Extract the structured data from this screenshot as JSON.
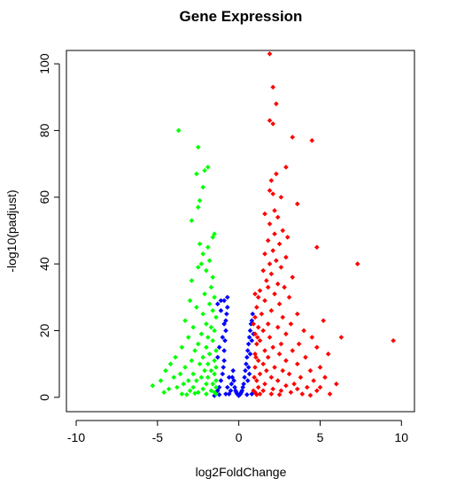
{
  "chart_data": {
    "type": "scatter",
    "title": "Gene Expression",
    "xlabel": "log2FoldChange",
    "ylabel": "-log10(padjust)",
    "xlim": [
      -10.6,
      10.8
    ],
    "ylim": [
      -4.3,
      104
    ],
    "xticks": [
      -10,
      -5,
      0,
      5,
      10
    ],
    "yticks": [
      0,
      20,
      40,
      60,
      80,
      100
    ],
    "grid": false,
    "legend": "none",
    "series": [
      {
        "color": "#0000ff",
        "points": [
          [
            -1.4,
            1
          ],
          [
            -1.3,
            2
          ],
          [
            -1.2,
            3
          ],
          [
            -1.1,
            5
          ],
          [
            -1.0,
            7
          ],
          [
            -0.95,
            9
          ],
          [
            -0.9,
            11
          ],
          [
            -0.9,
            14
          ],
          [
            -0.85,
            17
          ],
          [
            -0.8,
            20
          ],
          [
            -0.8,
            23
          ],
          [
            -0.75,
            25
          ],
          [
            -0.7,
            27
          ],
          [
            -0.7,
            30
          ],
          [
            -0.6,
            1
          ],
          [
            -0.5,
            2
          ],
          [
            -0.45,
            4
          ],
          [
            -0.4,
            6
          ],
          [
            -0.35,
            8
          ],
          [
            -0.3,
            5
          ],
          [
            -0.25,
            3
          ],
          [
            -0.2,
            2
          ],
          [
            -0.15,
            1.5
          ],
          [
            -0.1,
            1
          ],
          [
            0,
            0.5
          ],
          [
            0.1,
            1
          ],
          [
            0.15,
            1.5
          ],
          [
            0.2,
            2
          ],
          [
            0.25,
            3
          ],
          [
            0.3,
            4
          ],
          [
            0.35,
            6
          ],
          [
            0.4,
            8
          ],
          [
            0.45,
            10
          ],
          [
            0.5,
            12
          ],
          [
            0.55,
            14
          ],
          [
            0.6,
            16
          ],
          [
            0.65,
            18
          ],
          [
            0.7,
            20
          ],
          [
            0.75,
            22
          ],
          [
            0.8,
            23
          ],
          [
            0.85,
            25
          ],
          [
            -1.3,
            12
          ],
          [
            -1.2,
            15
          ],
          [
            -1.0,
            18
          ],
          [
            -0.9,
            22
          ],
          [
            -1.1,
            26
          ],
          [
            0.6,
            9
          ],
          [
            0.7,
            13
          ],
          [
            0.8,
            17
          ],
          [
            0.9,
            19
          ],
          [
            -1.3,
            28
          ],
          [
            -1.1,
            29
          ],
          [
            -0.9,
            29
          ],
          [
            -1.5,
            0.5
          ],
          [
            -1.2,
            0.8
          ],
          [
            -0.8,
            1
          ],
          [
            0.5,
            0.8
          ],
          [
            0.8,
            1
          ],
          [
            1.0,
            1.5
          ],
          [
            -0.7,
            3
          ],
          [
            -0.6,
            6
          ],
          [
            0.55,
            5
          ],
          [
            0.65,
            7
          ]
        ]
      },
      {
        "color": "#00ff00",
        "points": [
          [
            -3.7,
            80
          ],
          [
            -2.5,
            75
          ],
          [
            -1.9,
            69
          ],
          [
            -2.1,
            68
          ],
          [
            -2.6,
            67
          ],
          [
            -2.2,
            63
          ],
          [
            -2.4,
            59
          ],
          [
            -2.5,
            57
          ],
          [
            -2.9,
            53
          ],
          [
            -1.5,
            49
          ],
          [
            -1.6,
            48
          ],
          [
            -2.4,
            46
          ],
          [
            -1.9,
            45
          ],
          [
            -2.2,
            43
          ],
          [
            -1.8,
            41
          ],
          [
            -2.3,
            40
          ],
          [
            -2.5,
            39
          ],
          [
            -2.0,
            38
          ],
          [
            -1.6,
            36
          ],
          [
            -2.9,
            35
          ],
          [
            -1.7,
            33
          ],
          [
            -2.1,
            31
          ],
          [
            -1.5,
            30
          ],
          [
            -3.0,
            29
          ],
          [
            -1.8,
            28
          ],
          [
            -2.6,
            27
          ],
          [
            -1.6,
            26
          ],
          [
            -2.2,
            25
          ],
          [
            -1.4,
            24
          ],
          [
            -3.3,
            23
          ],
          [
            -2.0,
            22
          ],
          [
            -1.7,
            21
          ],
          [
            -2.8,
            21
          ],
          [
            -1.5,
            20
          ],
          [
            -2.3,
            19
          ],
          [
            -1.9,
            18
          ],
          [
            -3.1,
            18
          ],
          [
            -1.6,
            17
          ],
          [
            -2.5,
            16
          ],
          [
            -2.0,
            15
          ],
          [
            -3.5,
            15
          ],
          [
            -1.4,
            14
          ],
          [
            -2.7,
            14
          ],
          [
            -1.8,
            13
          ],
          [
            -2.2,
            12
          ],
          [
            -3.9,
            12
          ],
          [
            -1.5,
            11
          ],
          [
            -2.9,
            11
          ],
          [
            -1.9,
            10
          ],
          [
            -2.4,
            10
          ],
          [
            -4.2,
            10
          ],
          [
            -1.4,
            9
          ],
          [
            -3.3,
            9
          ],
          [
            -2.1,
            8
          ],
          [
            -1.7,
            8
          ],
          [
            -4.5,
            8
          ],
          [
            -2.8,
            7
          ],
          [
            -1.5,
            7
          ],
          [
            -3.6,
            7
          ],
          [
            -2.3,
            6
          ],
          [
            -1.9,
            6
          ],
          [
            -4.0,
            6
          ],
          [
            -1.4,
            5
          ],
          [
            -3.1,
            5
          ],
          [
            -2.6,
            5
          ],
          [
            -4.8,
            5
          ],
          [
            -2.0,
            4
          ],
          [
            -1.6,
            4
          ],
          [
            -3.4,
            4
          ],
          [
            -5.3,
            3.5
          ],
          [
            -2.8,
            3
          ],
          [
            -1.4,
            3
          ],
          [
            -3.8,
            3
          ],
          [
            -2.2,
            2.5
          ],
          [
            -4.3,
            2.5
          ],
          [
            -1.7,
            2
          ],
          [
            -3.0,
            2
          ],
          [
            -2.5,
            1.5
          ],
          [
            -1.5,
            1.5
          ],
          [
            -4.6,
            1.5
          ],
          [
            -3.5,
            1
          ],
          [
            -2.0,
            1
          ],
          [
            -1.4,
            1
          ],
          [
            -2.7,
            1.2
          ],
          [
            -3.2,
            0.8
          ]
        ]
      },
      {
        "color": "#ff0000",
        "points": [
          [
            1.9,
            103
          ],
          [
            2.1,
            93
          ],
          [
            2.3,
            88
          ],
          [
            1.9,
            83
          ],
          [
            2.1,
            82
          ],
          [
            3.3,
            78
          ],
          [
            4.5,
            77
          ],
          [
            2.9,
            69
          ],
          [
            2.3,
            67
          ],
          [
            2.0,
            65
          ],
          [
            1.9,
            62
          ],
          [
            2.1,
            61
          ],
          [
            2.6,
            60
          ],
          [
            3.6,
            58
          ],
          [
            2.2,
            56
          ],
          [
            1.6,
            55
          ],
          [
            2.4,
            54
          ],
          [
            1.9,
            52
          ],
          [
            2.7,
            50
          ],
          [
            2.2,
            49
          ],
          [
            3.0,
            48
          ],
          [
            1.8,
            47
          ],
          [
            2.5,
            46
          ],
          [
            4.8,
            45
          ],
          [
            2.1,
            44
          ],
          [
            1.6,
            43
          ],
          [
            2.9,
            42
          ],
          [
            2.3,
            41
          ],
          [
            1.9,
            40
          ],
          [
            7.3,
            40
          ],
          [
            2.6,
            39
          ],
          [
            1.5,
            38
          ],
          [
            2.0,
            37
          ],
          [
            3.3,
            36
          ],
          [
            1.7,
            35
          ],
          [
            2.4,
            34
          ],
          [
            1.8,
            33
          ],
          [
            2.8,
            33
          ],
          [
            1.3,
            32
          ],
          [
            2.2,
            31
          ],
          [
            1.0,
            31
          ],
          [
            1.2,
            30
          ],
          [
            3.1,
            30
          ],
          [
            1.6,
            29
          ],
          [
            2.5,
            28
          ],
          [
            1.1,
            27
          ],
          [
            2.0,
            26
          ],
          [
            3.6,
            25
          ],
          [
            1.4,
            25
          ],
          [
            2.7,
            24
          ],
          [
            1.0,
            24
          ],
          [
            5.2,
            23
          ],
          [
            1.8,
            22
          ],
          [
            3.2,
            22
          ],
          [
            1.2,
            21
          ],
          [
            2.4,
            21
          ],
          [
            4.0,
            20
          ],
          [
            1.5,
            20
          ],
          [
            2.9,
            19
          ],
          [
            1.0,
            19
          ],
          [
            4.5,
            18
          ],
          [
            1.9,
            18
          ],
          [
            6.3,
            18
          ],
          [
            1.3,
            17
          ],
          [
            9.5,
            17
          ],
          [
            2.6,
            16
          ],
          [
            3.7,
            16
          ],
          [
            1.1,
            16
          ],
          [
            2.1,
            15
          ],
          [
            4.8,
            15
          ],
          [
            1.6,
            14
          ],
          [
            3.3,
            14
          ],
          [
            1.0,
            13
          ],
          [
            2.5,
            13
          ],
          [
            5.5,
            13
          ],
          [
            1.8,
            12
          ],
          [
            4.1,
            12
          ],
          [
            1.2,
            11
          ],
          [
            2.9,
            11
          ],
          [
            1.5,
            10
          ],
          [
            3.6,
            10
          ],
          [
            2.2,
            9
          ],
          [
            5.0,
            9
          ],
          [
            1.0,
            9
          ],
          [
            2.7,
            8
          ],
          [
            1.7,
            8
          ],
          [
            4.4,
            8
          ],
          [
            3.1,
            7
          ],
          [
            1.3,
            7
          ],
          [
            2.0,
            6
          ],
          [
            5.3,
            6
          ],
          [
            3.8,
            6
          ],
          [
            1.1,
            5
          ],
          [
            2.4,
            5
          ],
          [
            4.6,
            5
          ],
          [
            1.6,
            4
          ],
          [
            3.4,
            4
          ],
          [
            6.0,
            4
          ],
          [
            2.9,
            3.5
          ],
          [
            1.2,
            3
          ],
          [
            4.2,
            3
          ],
          [
            5.0,
            3
          ],
          [
            2.1,
            2.5
          ],
          [
            3.6,
            2.5
          ],
          [
            1.5,
            2
          ],
          [
            2.6,
            2
          ],
          [
            4.8,
            2
          ],
          [
            1.0,
            1.5
          ],
          [
            3.2,
            1.5
          ],
          [
            2.0,
            1
          ],
          [
            1.3,
            1
          ],
          [
            3.9,
            1
          ],
          [
            5.6,
            1
          ],
          [
            2.5,
            0.8
          ],
          [
            1.1,
            0.8
          ],
          [
            4.4,
            0.6
          ],
          [
            0.9,
            2
          ],
          [
            0.95,
            6
          ],
          [
            1.05,
            12
          ],
          [
            1.15,
            18
          ],
          [
            0.9,
            22
          ]
        ]
      }
    ]
  }
}
